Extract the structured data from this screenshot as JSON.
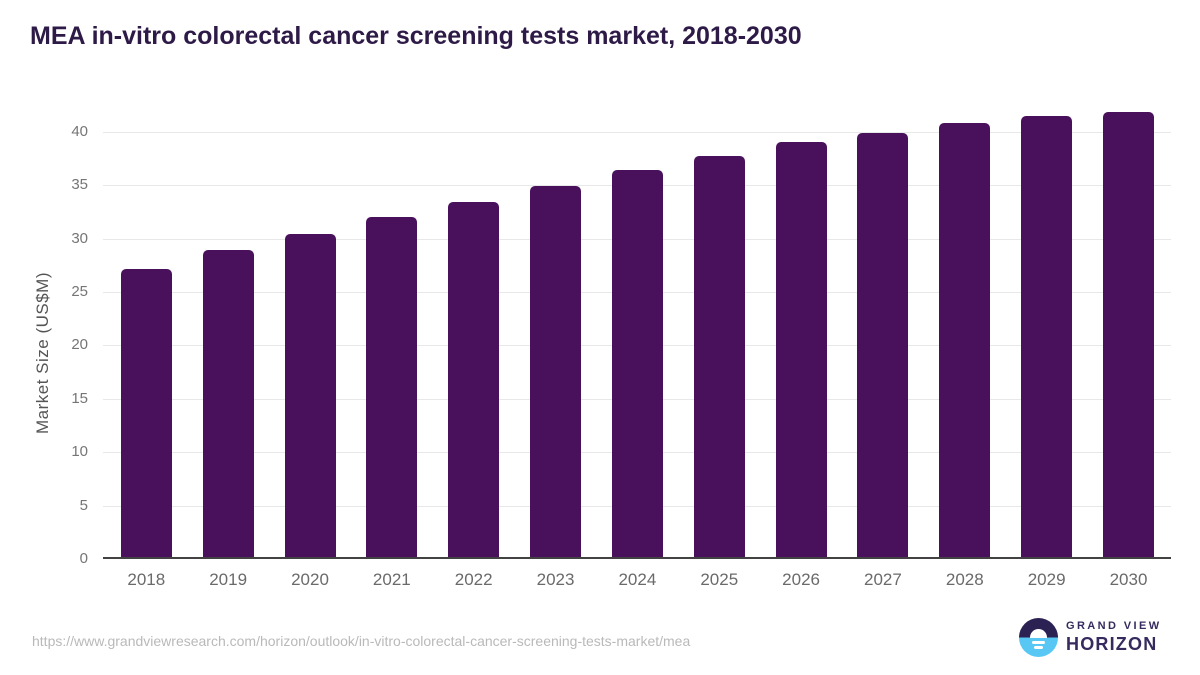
{
  "page": {
    "title": "MEA in-vitro colorectal cancer screening tests market, 2018-2030",
    "source_url": "https://www.grandviewresearch.com/horizon/outlook/in-vitro-colorectal-cancer-screening-tests-market/mea",
    "brand": {
      "line1": "GRAND VIEW",
      "line2": "HORIZON",
      "icon": "sun-over-horizon-icon"
    }
  },
  "colors": {
    "bar": "#49115c",
    "title_text": "#2e1a47",
    "y_axis_title_text": "#555555",
    "y_tick_text": "#757575",
    "x_tick_text": "#6a6a6a",
    "gridline": "#e8e8e8",
    "axis_line": "#424242",
    "url_text": "#b9b9b9",
    "brand_purple": "#362a5e",
    "brand_blue": "#58c7f3",
    "brand_dark": "#2b2153"
  },
  "chart_data": {
    "type": "bar",
    "title": "MEA in-vitro colorectal cancer screening tests market, 2018-2030",
    "xlabel": "",
    "ylabel": "Market Size (US$M)",
    "categories": [
      "2018",
      "2019",
      "2020",
      "2021",
      "2022",
      "2023",
      "2024",
      "2025",
      "2026",
      "2027",
      "2028",
      "2029",
      "2030"
    ],
    "values": [
      27.2,
      28.9,
      30.4,
      32.0,
      33.4,
      34.9,
      36.4,
      37.7,
      39.0,
      39.9,
      40.8,
      41.5,
      41.9
    ],
    "ylim": [
      0,
      40
    ],
    "ytick_step": 5,
    "grid": "horizontal",
    "legend": "none",
    "data_labels": "none",
    "bar_color": "#49115c"
  }
}
